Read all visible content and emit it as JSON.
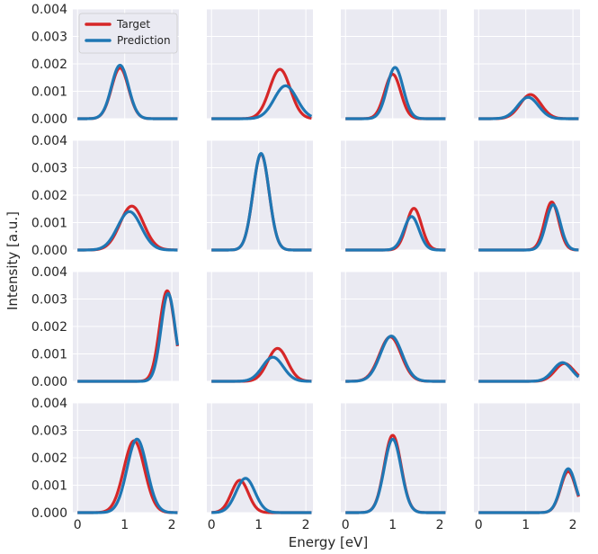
{
  "chart_data": {
    "type": "line",
    "layout": "4x4 grid of subplots, shared x and y axes",
    "xlabel": "Energy [eV]",
    "ylabel": "Intensity [a.u.]",
    "xlim": [
      -0.1,
      2.15
    ],
    "ylim": [
      0,
      0.004
    ],
    "x_ticks": [
      "0",
      "1",
      "2"
    ],
    "y_ticks": [
      "0.000",
      "0.001",
      "0.002",
      "0.003",
      "0.004"
    ],
    "grid": true,
    "legend": {
      "placement": "top-left of first subplot",
      "entries": [
        "Target",
        "Prediction"
      ]
    },
    "series_colors": {
      "Target": "#d62728",
      "Prediction": "#1f77b4"
    },
    "panel_background": "#eaeaf2",
    "curve_model": "gaussian peaks: amp * exp(-(x-mu)^2 / (2*sigma^2))",
    "panels": [
      {
        "target": {
          "amp": 0.00185,
          "mu": 0.9,
          "sigma": 0.18
        },
        "prediction": {
          "amp": 0.00195,
          "mu": 0.9,
          "sigma": 0.18
        }
      },
      {
        "target": {
          "amp": 0.0018,
          "mu": 1.45,
          "sigma": 0.22
        },
        "prediction": {
          "amp": 0.0012,
          "mu": 1.57,
          "sigma": 0.24
        }
      },
      {
        "target": {
          "amp": 0.00162,
          "mu": 1.0,
          "sigma": 0.17
        },
        "prediction": {
          "amp": 0.00187,
          "mu": 1.05,
          "sigma": 0.17
        }
      },
      {
        "target": {
          "amp": 0.00088,
          "mu": 1.1,
          "sigma": 0.22
        },
        "prediction": {
          "amp": 0.00078,
          "mu": 1.05,
          "sigma": 0.22
        }
      },
      {
        "target": {
          "amp": 0.0016,
          "mu": 1.15,
          "sigma": 0.25
        },
        "prediction": {
          "amp": 0.0014,
          "mu": 1.1,
          "sigma": 0.25
        }
      },
      {
        "target": {
          "amp": 0.0035,
          "mu": 1.05,
          "sigma": 0.17
        },
        "prediction": {
          "amp": 0.00352,
          "mu": 1.05,
          "sigma": 0.17
        }
      },
      {
        "target": {
          "amp": 0.00152,
          "mu": 1.45,
          "sigma": 0.16
        },
        "prediction": {
          "amp": 0.00122,
          "mu": 1.4,
          "sigma": 0.16
        }
      },
      {
        "target": {
          "amp": 0.00175,
          "mu": 1.55,
          "sigma": 0.15
        },
        "prediction": {
          "amp": 0.00165,
          "mu": 1.58,
          "sigma": 0.15
        }
      },
      {
        "target": {
          "amp": 0.0033,
          "mu": 1.9,
          "sigma": 0.16
        },
        "prediction": {
          "amp": 0.0032,
          "mu": 1.92,
          "sigma": 0.15
        }
      },
      {
        "target": {
          "amp": 0.0012,
          "mu": 1.4,
          "sigma": 0.21
        },
        "prediction": {
          "amp": 0.00088,
          "mu": 1.3,
          "sigma": 0.22
        }
      },
      {
        "target": {
          "amp": 0.00162,
          "mu": 0.95,
          "sigma": 0.23
        },
        "prediction": {
          "amp": 0.00165,
          "mu": 0.97,
          "sigma": 0.23
        }
      },
      {
        "target": {
          "amp": 0.00065,
          "mu": 1.82,
          "sigma": 0.2
        },
        "prediction": {
          "amp": 0.00068,
          "mu": 1.78,
          "sigma": 0.2
        }
      },
      {
        "target": {
          "amp": 0.00262,
          "mu": 1.2,
          "sigma": 0.22
        },
        "prediction": {
          "amp": 0.00268,
          "mu": 1.26,
          "sigma": 0.21
        }
      },
      {
        "target": {
          "amp": 0.00118,
          "mu": 0.6,
          "sigma": 0.18
        },
        "prediction": {
          "amp": 0.00125,
          "mu": 0.72,
          "sigma": 0.2
        }
      },
      {
        "target": {
          "amp": 0.00282,
          "mu": 1.0,
          "sigma": 0.18
        },
        "prediction": {
          "amp": 0.00268,
          "mu": 1.0,
          "sigma": 0.18
        }
      },
      {
        "target": {
          "amp": 0.0015,
          "mu": 1.9,
          "sigma": 0.16
        },
        "prediction": {
          "amp": 0.0016,
          "mu": 1.9,
          "sigma": 0.16
        }
      }
    ]
  }
}
